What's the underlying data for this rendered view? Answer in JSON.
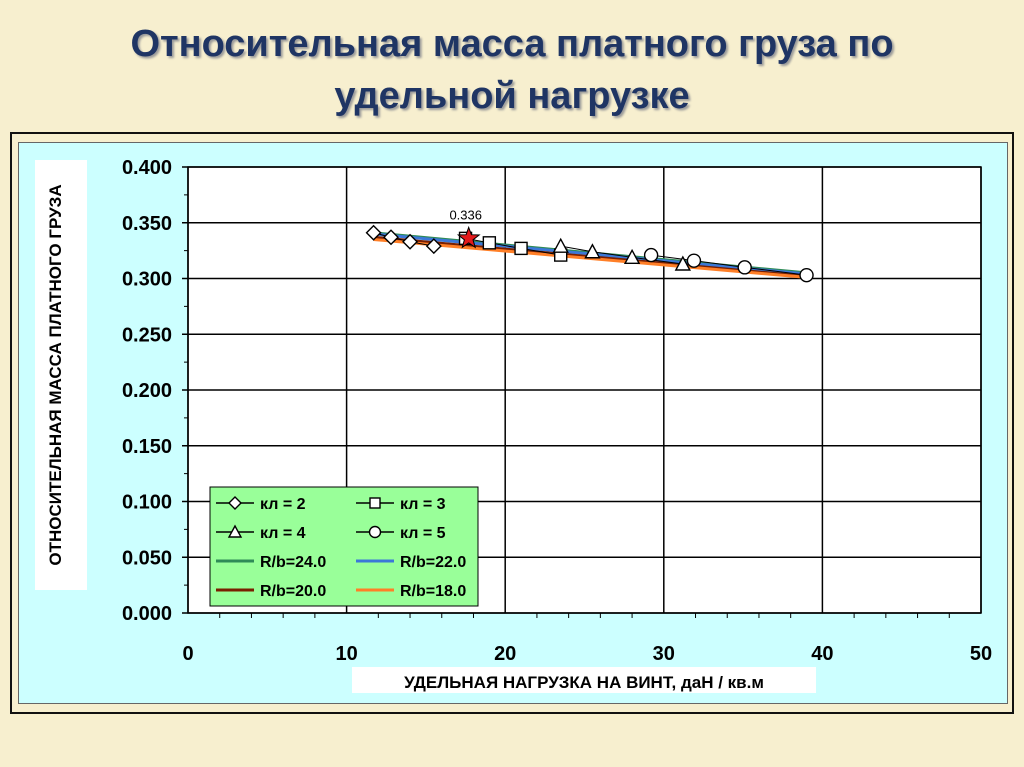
{
  "page": {
    "title_line1": "Относительная масса платного груза по",
    "title_line2": "удельной нагрузке"
  },
  "colors": {
    "panel": "#ccffff",
    "title": "#1f3564",
    "legend_bg": "#99ff99",
    "star": "#e31a1c"
  },
  "chart_data": {
    "type": "line",
    "title": "",
    "xlabel": "УДЕЛЬНАЯ НАГРУЗКА НА ВИНТ, даН / кв.м",
    "ylabel": "ОТНОСИТЕЛЬНАЯ МАССА ПЛАТНОГО ГРУЗА",
    "xlim": [
      0,
      50
    ],
    "ylim": [
      0,
      0.4
    ],
    "x_ticks": [
      "0",
      "10",
      "20",
      "30",
      "40",
      "50"
    ],
    "y_ticks": [
      "0.000",
      "0.050",
      "0.100",
      "0.150",
      "0.200",
      "0.250",
      "0.300",
      "0.350",
      "0.400"
    ],
    "grid": true,
    "legend_position": "bottom-left",
    "series": [
      {
        "name": "кл = 2",
        "marker": "diamond",
        "color": "#000000",
        "x": [
          11.7,
          12.8,
          14.0,
          15.5
        ],
        "y": [
          0.341,
          0.337,
          0.333,
          0.329
        ]
      },
      {
        "name": "кл = 3",
        "marker": "square",
        "color": "#000000",
        "x": [
          17.5,
          19.0,
          21.0,
          23.5
        ],
        "y": [
          0.336,
          0.332,
          0.327,
          0.321
        ]
      },
      {
        "name": "кл = 4",
        "marker": "triangle",
        "color": "#000000",
        "x": [
          23.5,
          25.5,
          28.0,
          31.2
        ],
        "y": [
          0.329,
          0.324,
          0.319,
          0.313
        ]
      },
      {
        "name": "кл = 5",
        "marker": "circle",
        "color": "#000000",
        "x": [
          29.2,
          31.9,
          35.1,
          39.0
        ],
        "y": [
          0.321,
          0.316,
          0.31,
          0.303
        ]
      },
      {
        "name": "R/b=24.0",
        "marker": "none",
        "color": "#2e8b57",
        "x": [
          11.7,
          39.0
        ],
        "y": [
          0.341,
          0.305
        ]
      },
      {
        "name": "R/b=22.0",
        "marker": "none",
        "color": "#3c78d8",
        "x": [
          11.7,
          39.0
        ],
        "y": [
          0.34,
          0.304
        ]
      },
      {
        "name": "R/b=20.0",
        "marker": "none",
        "color": "#7a1f00",
        "x": [
          11.7,
          39.0
        ],
        "y": [
          0.337,
          0.302
        ]
      },
      {
        "name": "R/b=18.0",
        "marker": "none",
        "color": "#ff7f27",
        "x": [
          11.7,
          39.0
        ],
        "y": [
          0.335,
          0.301
        ]
      }
    ],
    "highlight": {
      "x": 17.7,
      "y": 0.336,
      "label": "0.336",
      "marker": "star"
    }
  }
}
